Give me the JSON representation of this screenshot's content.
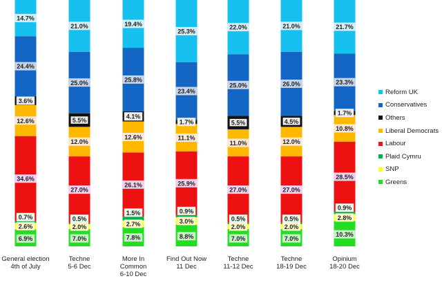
{
  "chart_data": {
    "type": "bar",
    "stacked": true,
    "normalized_percent": true,
    "title": "",
    "xlabel": "",
    "ylabel": "",
    "ylim": [
      0,
      100
    ],
    "grid": false,
    "legend_position": "right",
    "categories": [
      [
        "General election",
        "4th of July"
      ],
      [
        "Techne",
        "5-6 Dec"
      ],
      [
        "More In",
        "Common",
        "6-10 Dec"
      ],
      [
        "Find Out Now",
        "11 Dec"
      ],
      [
        "Techne",
        "11-12 Dec"
      ],
      [
        "Techne",
        "18-19 Dec"
      ],
      [
        "Opinium",
        "18-20 Dec"
      ]
    ],
    "series": [
      {
        "name": "Greens",
        "color": "#22dd22",
        "label_bg": "#c6f2c6",
        "values": [
          6.9,
          7.0,
          7.8,
          8.8,
          7.0,
          7.0,
          10.3
        ],
        "labels": [
          "6.9%",
          "7.0%",
          "7.8%",
          "8.8%",
          "7.0%",
          "7.0%",
          "10.3%"
        ]
      },
      {
        "name": "SNP",
        "color": "#ffff22",
        "label_bg": "#fffccc",
        "values": [
          2.6,
          2.0,
          2.7,
          3.0,
          2.0,
          2.0,
          2.8
        ],
        "labels": [
          "2.6%",
          "2.0%",
          "2.7%",
          "3.0%",
          "2.0%",
          "2.0%",
          "2.8%"
        ]
      },
      {
        "name": "Plaid Cymru",
        "color": "#00b050",
        "label_bg": "#eaf7ea",
        "values": [
          0.7,
          0.5,
          1.5,
          0.9,
          0.5,
          0.5,
          0.9
        ],
        "labels": [
          "0.7%",
          "0.5%",
          "1.5%",
          "0.9%",
          "0.5%",
          "0.5%",
          "0.9%"
        ]
      },
      {
        "name": "Labour",
        "color": "#ee1111",
        "label_bg": "#f2d0f0",
        "values": [
          34.6,
          27.0,
          26.1,
          25.9,
          27.0,
          27.0,
          28.5
        ],
        "labels": [
          "34.6%",
          "27.0%",
          "26.1%",
          "25.9%",
          "27.0%",
          "27.0%",
          "28.5%"
        ]
      },
      {
        "name": "Liberal Democrats",
        "color": "#ffb800",
        "label_bg": "#fbe8d6",
        "values": [
          12.6,
          12.0,
          12.6,
          11.1,
          11.0,
          12.0,
          10.8
        ],
        "labels": [
          "12.6%",
          "12.0%",
          "12.6%",
          "11.1%",
          "11.0%",
          "12.0%",
          "10.8%"
        ]
      },
      {
        "name": "Others",
        "color": "#111111",
        "label_bg": "#eeeeee",
        "values": [
          3.6,
          5.5,
          4.1,
          1.7,
          5.5,
          4.5,
          1.7
        ],
        "labels": [
          "3.6%",
          "5.5%",
          "4.1%",
          "1.7%",
          "5.5%",
          "4.5%",
          "1.7%"
        ]
      },
      {
        "name": "Conservatives",
        "color": "#1466c4",
        "label_bg": "#c6d4ea",
        "values": [
          24.4,
          25.0,
          25.8,
          23.4,
          25.0,
          26.0,
          23.3
        ],
        "labels": [
          "24.4%",
          "25.0%",
          "25.8%",
          "23.4%",
          "25.0%",
          "26.0%",
          "23.3%"
        ]
      },
      {
        "name": "Reform UK",
        "color": "#16c0ef",
        "label_bg": "#d4eef8",
        "values": [
          14.7,
          21.0,
          19.4,
          25.3,
          22.0,
          21.0,
          21.7
        ],
        "labels": [
          "14.7%",
          "21.0%",
          "19.4%",
          "25.3%",
          "22.0%",
          "21.0%",
          "21.7%"
        ]
      }
    ],
    "legend_order": [
      "Reform UK",
      "Conservatives",
      "Others",
      "Liberal Democrats",
      "Labour",
      "Plaid Cymru",
      "SNP",
      "Greens"
    ]
  }
}
